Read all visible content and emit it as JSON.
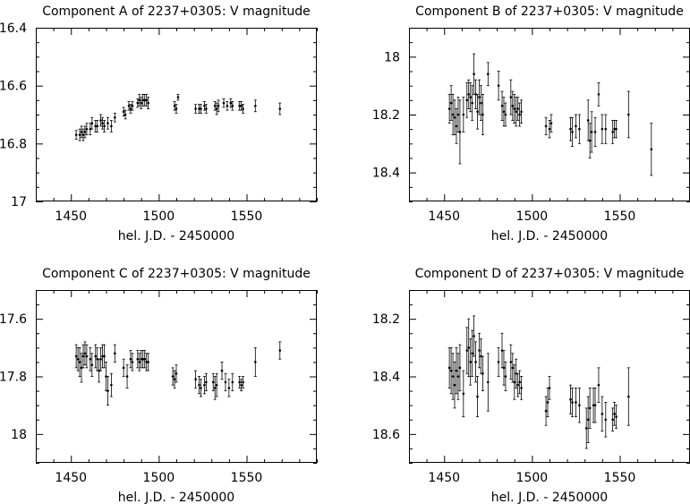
{
  "chart_data": [
    {
      "type": "scatter",
      "title": "Component A of 2237+0305: V magnitude",
      "xlabel": "hel. J.D. - 2450000",
      "ylabel": "",
      "xlim": [
        1430,
        1590
      ],
      "ylim": [
        16.4,
        17.0
      ],
      "y_inverted": true,
      "xticks": [
        1450,
        1500,
        1550
      ],
      "yticks": [
        16.4,
        16.6,
        16.8,
        17
      ],
      "ytick_labels": [
        "16.4",
        "16.6",
        "16.8",
        "17"
      ],
      "error_bars": true,
      "points": [
        {
          "x": 1453,
          "y": 16.77,
          "err": 0.015
        },
        {
          "x": 1455,
          "y": 16.77,
          "err": 0.02
        },
        {
          "x": 1456,
          "y": 16.76,
          "err": 0.02
        },
        {
          "x": 1457,
          "y": 16.77,
          "err": 0.02
        },
        {
          "x": 1458,
          "y": 16.76,
          "err": 0.02
        },
        {
          "x": 1459,
          "y": 16.75,
          "err": 0.02
        },
        {
          "x": 1461,
          "y": 16.75,
          "err": 0.02
        },
        {
          "x": 1462,
          "y": 16.73,
          "err": 0.02
        },
        {
          "x": 1464,
          "y": 16.74,
          "err": 0.02
        },
        {
          "x": 1465,
          "y": 16.74,
          "err": 0.02
        },
        {
          "x": 1467,
          "y": 16.72,
          "err": 0.02
        },
        {
          "x": 1468,
          "y": 16.73,
          "err": 0.02
        },
        {
          "x": 1469,
          "y": 16.74,
          "err": 0.02
        },
        {
          "x": 1471,
          "y": 16.73,
          "err": 0.02
        },
        {
          "x": 1473,
          "y": 16.74,
          "err": 0.02
        },
        {
          "x": 1475,
          "y": 16.71,
          "err": 0.015
        },
        {
          "x": 1480,
          "y": 16.69,
          "err": 0.015
        },
        {
          "x": 1481,
          "y": 16.7,
          "err": 0.015
        },
        {
          "x": 1483,
          "y": 16.67,
          "err": 0.015
        },
        {
          "x": 1484,
          "y": 16.68,
          "err": 0.015
        },
        {
          "x": 1485,
          "y": 16.67,
          "err": 0.015
        },
        {
          "x": 1488,
          "y": 16.66,
          "err": 0.015
        },
        {
          "x": 1489,
          "y": 16.65,
          "err": 0.02
        },
        {
          "x": 1490,
          "y": 16.66,
          "err": 0.02
        },
        {
          "x": 1491,
          "y": 16.65,
          "err": 0.02
        },
        {
          "x": 1492,
          "y": 16.65,
          "err": 0.02
        },
        {
          "x": 1493,
          "y": 16.65,
          "err": 0.02
        },
        {
          "x": 1494,
          "y": 16.66,
          "err": 0.02
        },
        {
          "x": 1509,
          "y": 16.67,
          "err": 0.015
        },
        {
          "x": 1510,
          "y": 16.68,
          "err": 0.015
        },
        {
          "x": 1511,
          "y": 16.64,
          "err": 0.01
        },
        {
          "x": 1521,
          "y": 16.68,
          "err": 0.015
        },
        {
          "x": 1523,
          "y": 16.68,
          "err": 0.015
        },
        {
          "x": 1524,
          "y": 16.68,
          "err": 0.015
        },
        {
          "x": 1526,
          "y": 16.67,
          "err": 0.015
        },
        {
          "x": 1527,
          "y": 16.68,
          "err": 0.015
        },
        {
          "x": 1532,
          "y": 16.67,
          "err": 0.015
        },
        {
          "x": 1533,
          "y": 16.68,
          "err": 0.02
        },
        {
          "x": 1534,
          "y": 16.67,
          "err": 0.02
        },
        {
          "x": 1537,
          "y": 16.66,
          "err": 0.015
        },
        {
          "x": 1539,
          "y": 16.67,
          "err": 0.015
        },
        {
          "x": 1541,
          "y": 16.66,
          "err": 0.015
        },
        {
          "x": 1542,
          "y": 16.67,
          "err": 0.015
        },
        {
          "x": 1546,
          "y": 16.67,
          "err": 0.015
        },
        {
          "x": 1547,
          "y": 16.67,
          "err": 0.015
        },
        {
          "x": 1548,
          "y": 16.68,
          "err": 0.015
        },
        {
          "x": 1555,
          "y": 16.67,
          "err": 0.02
        },
        {
          "x": 1569,
          "y": 16.68,
          "err": 0.02
        }
      ]
    },
    {
      "type": "scatter",
      "title": "Component B of 2237+0305: V magnitude",
      "xlabel": "hel. J.D. - 2450000",
      "ylabel": "",
      "xlim": [
        1430,
        1590
      ],
      "ylim": [
        17.9,
        18.5
      ],
      "y_inverted": true,
      "xticks": [
        1450,
        1500,
        1550
      ],
      "yticks": [
        18.0,
        18.2,
        18.4
      ],
      "ytick_labels": [
        "18",
        "18.2",
        "18.4"
      ],
      "error_bars": true,
      "points": [
        {
          "x": 1453,
          "y": 18.18,
          "err": 0.05
        },
        {
          "x": 1454,
          "y": 18.16,
          "err": 0.06
        },
        {
          "x": 1455,
          "y": 18.2,
          "err": 0.07
        },
        {
          "x": 1456,
          "y": 18.21,
          "err": 0.06
        },
        {
          "x": 1457,
          "y": 18.24,
          "err": 0.06
        },
        {
          "x": 1458,
          "y": 18.2,
          "err": 0.06
        },
        {
          "x": 1459,
          "y": 18.26,
          "err": 0.11
        },
        {
          "x": 1461,
          "y": 18.2,
          "err": 0.06
        },
        {
          "x": 1463,
          "y": 18.15,
          "err": 0.06
        },
        {
          "x": 1464,
          "y": 18.13,
          "err": 0.05
        },
        {
          "x": 1465,
          "y": 18.14,
          "err": 0.05
        },
        {
          "x": 1466,
          "y": 18.16,
          "err": 0.06
        },
        {
          "x": 1467,
          "y": 18.06,
          "err": 0.07
        },
        {
          "x": 1468,
          "y": 18.13,
          "err": 0.05
        },
        {
          "x": 1469,
          "y": 18.19,
          "err": 0.06
        },
        {
          "x": 1470,
          "y": 18.14,
          "err": 0.06
        },
        {
          "x": 1471,
          "y": 18.16,
          "err": 0.06
        },
        {
          "x": 1472,
          "y": 18.2,
          "err": 0.07
        },
        {
          "x": 1475,
          "y": 18.06,
          "err": 0.04
        },
        {
          "x": 1481,
          "y": 18.1,
          "err": 0.05
        },
        {
          "x": 1483,
          "y": 18.17,
          "err": 0.05
        },
        {
          "x": 1484,
          "y": 18.19,
          "err": 0.05
        },
        {
          "x": 1485,
          "y": 18.2,
          "err": 0.04
        },
        {
          "x": 1488,
          "y": 18.14,
          "err": 0.06
        },
        {
          "x": 1489,
          "y": 18.17,
          "err": 0.05
        },
        {
          "x": 1490,
          "y": 18.18,
          "err": 0.05
        },
        {
          "x": 1491,
          "y": 18.19,
          "err": 0.05
        },
        {
          "x": 1492,
          "y": 18.18,
          "err": 0.04
        },
        {
          "x": 1493,
          "y": 18.2,
          "err": 0.04
        },
        {
          "x": 1494,
          "y": 18.19,
          "err": 0.04
        },
        {
          "x": 1508,
          "y": 18.24,
          "err": 0.03
        },
        {
          "x": 1510,
          "y": 18.25,
          "err": 0.03
        },
        {
          "x": 1511,
          "y": 18.23,
          "err": 0.03
        },
        {
          "x": 1522,
          "y": 18.25,
          "err": 0.04
        },
        {
          "x": 1523,
          "y": 18.26,
          "err": 0.05
        },
        {
          "x": 1525,
          "y": 18.24,
          "err": 0.04
        },
        {
          "x": 1527,
          "y": 18.25,
          "err": 0.05
        },
        {
          "x": 1532,
          "y": 18.22,
          "err": 0.07
        },
        {
          "x": 1533,
          "y": 18.29,
          "err": 0.06
        },
        {
          "x": 1534,
          "y": 18.26,
          "err": 0.07
        },
        {
          "x": 1536,
          "y": 18.26,
          "err": 0.05
        },
        {
          "x": 1538,
          "y": 18.13,
          "err": 0.04
        },
        {
          "x": 1540,
          "y": 18.25,
          "err": 0.05
        },
        {
          "x": 1542,
          "y": 18.25,
          "err": 0.05
        },
        {
          "x": 1546,
          "y": 18.26,
          "err": 0.04
        },
        {
          "x": 1547,
          "y": 18.25,
          "err": 0.03
        },
        {
          "x": 1548,
          "y": 18.25,
          "err": 0.03
        },
        {
          "x": 1555,
          "y": 18.2,
          "err": 0.08
        },
        {
          "x": 1568,
          "y": 18.32,
          "err": 0.09
        }
      ]
    },
    {
      "type": "scatter",
      "title": "Component C of 2237+0305: V magnitude",
      "xlabel": "hel. J.D. - 2450000",
      "ylabel": "",
      "xlim": [
        1430,
        1590
      ],
      "ylim": [
        17.5,
        18.1
      ],
      "y_inverted": true,
      "xticks": [
        1450,
        1500,
        1550
      ],
      "yticks": [
        17.6,
        17.8,
        18.0
      ],
      "ytick_labels": [
        "17.6",
        "17.8",
        "18"
      ],
      "error_bars": true,
      "points": [
        {
          "x": 1453,
          "y": 17.73,
          "err": 0.04
        },
        {
          "x": 1454,
          "y": 17.74,
          "err": 0.04
        },
        {
          "x": 1455,
          "y": 17.75,
          "err": 0.05
        },
        {
          "x": 1456,
          "y": 17.77,
          "err": 0.05
        },
        {
          "x": 1457,
          "y": 17.73,
          "err": 0.04
        },
        {
          "x": 1458,
          "y": 17.72,
          "err": 0.04
        },
        {
          "x": 1459,
          "y": 17.73,
          "err": 0.04
        },
        {
          "x": 1461,
          "y": 17.74,
          "err": 0.04
        },
        {
          "x": 1462,
          "y": 17.76,
          "err": 0.04
        },
        {
          "x": 1464,
          "y": 17.73,
          "err": 0.04
        },
        {
          "x": 1465,
          "y": 17.74,
          "err": 0.04
        },
        {
          "x": 1466,
          "y": 17.78,
          "err": 0.04
        },
        {
          "x": 1467,
          "y": 17.74,
          "err": 0.04
        },
        {
          "x": 1468,
          "y": 17.73,
          "err": 0.04
        },
        {
          "x": 1469,
          "y": 17.73,
          "err": 0.04
        },
        {
          "x": 1470,
          "y": 17.8,
          "err": 0.05
        },
        {
          "x": 1471,
          "y": 17.85,
          "err": 0.05
        },
        {
          "x": 1473,
          "y": 17.83,
          "err": 0.04
        },
        {
          "x": 1475,
          "y": 17.72,
          "err": 0.03
        },
        {
          "x": 1480,
          "y": 17.77,
          "err": 0.03
        },
        {
          "x": 1482,
          "y": 17.8,
          "err": 0.04
        },
        {
          "x": 1484,
          "y": 17.74,
          "err": 0.03
        },
        {
          "x": 1485,
          "y": 17.75,
          "err": 0.03
        },
        {
          "x": 1488,
          "y": 17.74,
          "err": 0.03
        },
        {
          "x": 1489,
          "y": 17.75,
          "err": 0.03
        },
        {
          "x": 1490,
          "y": 17.74,
          "err": 0.03
        },
        {
          "x": 1491,
          "y": 17.74,
          "err": 0.03
        },
        {
          "x": 1492,
          "y": 17.74,
          "err": 0.03
        },
        {
          "x": 1493,
          "y": 17.75,
          "err": 0.03
        },
        {
          "x": 1494,
          "y": 17.75,
          "err": 0.03
        },
        {
          "x": 1508,
          "y": 17.8,
          "err": 0.03
        },
        {
          "x": 1509,
          "y": 17.81,
          "err": 0.03
        },
        {
          "x": 1510,
          "y": 17.79,
          "err": 0.03
        },
        {
          "x": 1521,
          "y": 17.81,
          "err": 0.03
        },
        {
          "x": 1523,
          "y": 17.83,
          "err": 0.03
        },
        {
          "x": 1524,
          "y": 17.84,
          "err": 0.03
        },
        {
          "x": 1526,
          "y": 17.83,
          "err": 0.03
        },
        {
          "x": 1527,
          "y": 17.82,
          "err": 0.03
        },
        {
          "x": 1531,
          "y": 17.82,
          "err": 0.03
        },
        {
          "x": 1532,
          "y": 17.84,
          "err": 0.04
        },
        {
          "x": 1533,
          "y": 17.83,
          "err": 0.04
        },
        {
          "x": 1536,
          "y": 17.78,
          "err": 0.03
        },
        {
          "x": 1538,
          "y": 17.82,
          "err": 0.03
        },
        {
          "x": 1540,
          "y": 17.84,
          "err": 0.03
        },
        {
          "x": 1542,
          "y": 17.82,
          "err": 0.03
        },
        {
          "x": 1546,
          "y": 17.82,
          "err": 0.02
        },
        {
          "x": 1547,
          "y": 17.83,
          "err": 0.02
        },
        {
          "x": 1548,
          "y": 17.82,
          "err": 0.02
        },
        {
          "x": 1555,
          "y": 17.75,
          "err": 0.05
        },
        {
          "x": 1569,
          "y": 17.71,
          "err": 0.03
        }
      ]
    },
    {
      "type": "scatter",
      "title": "Component D of 2237+0305: V magnitude",
      "xlabel": "hel. J.D. - 2450000",
      "ylabel": "",
      "xlim": [
        1430,
        1590
      ],
      "ylim": [
        18.1,
        18.7
      ],
      "y_inverted": true,
      "xticks": [
        1450,
        1500,
        1550
      ],
      "yticks": [
        18.2,
        18.4,
        18.6
      ],
      "ytick_labels": [
        "18.2",
        "18.4",
        "18.6"
      ],
      "error_bars": true,
      "points": [
        {
          "x": 1453,
          "y": 18.37,
          "err": 0.07
        },
        {
          "x": 1454,
          "y": 18.38,
          "err": 0.08
        },
        {
          "x": 1455,
          "y": 18.4,
          "err": 0.08
        },
        {
          "x": 1456,
          "y": 18.43,
          "err": 0.08
        },
        {
          "x": 1457,
          "y": 18.38,
          "err": 0.08
        },
        {
          "x": 1458,
          "y": 18.4,
          "err": 0.08
        },
        {
          "x": 1459,
          "y": 18.37,
          "err": 0.08
        },
        {
          "x": 1461,
          "y": 18.46,
          "err": 0.08
        },
        {
          "x": 1463,
          "y": 18.31,
          "err": 0.08
        },
        {
          "x": 1464,
          "y": 18.3,
          "err": 0.1
        },
        {
          "x": 1465,
          "y": 18.35,
          "err": 0.08
        },
        {
          "x": 1466,
          "y": 18.32,
          "err": 0.08
        },
        {
          "x": 1467,
          "y": 18.26,
          "err": 0.07
        },
        {
          "x": 1468,
          "y": 18.35,
          "err": 0.07
        },
        {
          "x": 1469,
          "y": 18.47,
          "err": 0.07
        },
        {
          "x": 1470,
          "y": 18.31,
          "err": 0.06
        },
        {
          "x": 1471,
          "y": 18.33,
          "err": 0.06
        },
        {
          "x": 1472,
          "y": 18.39,
          "err": 0.06
        },
        {
          "x": 1475,
          "y": 18.42,
          "err": 0.1
        },
        {
          "x": 1481,
          "y": 18.35,
          "err": 0.05
        },
        {
          "x": 1483,
          "y": 18.31,
          "err": 0.06
        },
        {
          "x": 1484,
          "y": 18.37,
          "err": 0.06
        },
        {
          "x": 1485,
          "y": 18.4,
          "err": 0.05
        },
        {
          "x": 1488,
          "y": 18.35,
          "err": 0.06
        },
        {
          "x": 1489,
          "y": 18.37,
          "err": 0.05
        },
        {
          "x": 1490,
          "y": 18.42,
          "err": 0.06
        },
        {
          "x": 1491,
          "y": 18.39,
          "err": 0.05
        },
        {
          "x": 1492,
          "y": 18.43,
          "err": 0.04
        },
        {
          "x": 1493,
          "y": 18.42,
          "err": 0.04
        },
        {
          "x": 1494,
          "y": 18.44,
          "err": 0.04
        },
        {
          "x": 1508,
          "y": 18.52,
          "err": 0.05
        },
        {
          "x": 1509,
          "y": 18.49,
          "err": 0.05
        },
        {
          "x": 1510,
          "y": 18.44,
          "err": 0.04
        },
        {
          "x": 1522,
          "y": 18.48,
          "err": 0.05
        },
        {
          "x": 1523,
          "y": 18.49,
          "err": 0.05
        },
        {
          "x": 1525,
          "y": 18.49,
          "err": 0.05
        },
        {
          "x": 1527,
          "y": 18.5,
          "err": 0.06
        },
        {
          "x": 1531,
          "y": 18.58,
          "err": 0.07
        },
        {
          "x": 1532,
          "y": 18.55,
          "err": 0.08
        },
        {
          "x": 1533,
          "y": 18.51,
          "err": 0.07
        },
        {
          "x": 1535,
          "y": 18.5,
          "err": 0.06
        },
        {
          "x": 1536,
          "y": 18.5,
          "err": 0.06
        },
        {
          "x": 1538,
          "y": 18.43,
          "err": 0.06
        },
        {
          "x": 1540,
          "y": 18.53,
          "err": 0.06
        },
        {
          "x": 1542,
          "y": 18.55,
          "err": 0.06
        },
        {
          "x": 1546,
          "y": 18.55,
          "err": 0.04
        },
        {
          "x": 1547,
          "y": 18.53,
          "err": 0.04
        },
        {
          "x": 1548,
          "y": 18.54,
          "err": 0.04
        },
        {
          "x": 1555,
          "y": 18.47,
          "err": 0.1
        }
      ]
    }
  ]
}
